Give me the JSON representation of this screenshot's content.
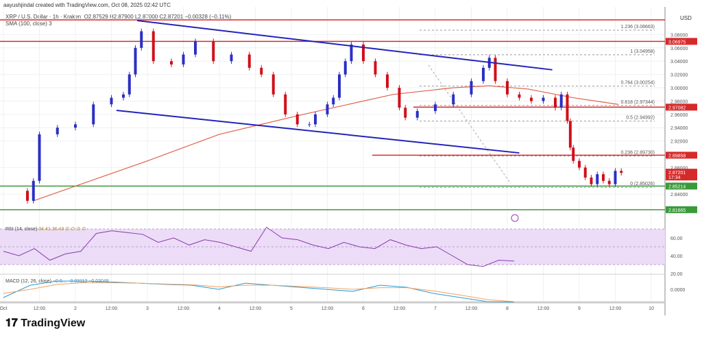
{
  "header": {
    "credit": "aayushjindal created with TradingView.com, Oct 08, 2025 02:42 UTC",
    "symbol": "XRP / U.S. Dollar · 1h · Kraken",
    "ohlc": "O2.87529  H2.87900  L2.87000  C2.87201  −0.00328 (−0.11%)",
    "sma": "SMA (100, close)  3",
    "currency": "USD"
  },
  "rsi_label": "RSI (14, close)",
  "rsi_values": "34.41  36.43  ∅ ∅ ∅ ∅",
  "macd_label": "MACD (12, 26, close)",
  "macd_values": "−0.0...  −0.03112  −0.03048",
  "brand": "TradingView",
  "colors": {
    "up": "#2b2fc4",
    "down": "#d0101a",
    "sma": "#e0604a",
    "trend": "#2222bb",
    "res": "#d62a2a",
    "sup": "#3a9a3a",
    "rsi": "#8a3aa8",
    "rsiBand": "#ecdcf8"
  },
  "chart_data": {
    "type": "candlestick",
    "title": "XRP / U.S. Dollar · 1h · Kraken",
    "ylim": [
      2.805,
      3.105
    ],
    "price_ticks": [
      3.08,
      3.06,
      3.04,
      3.02,
      3.0,
      2.98,
      2.96,
      2.94,
      2.92,
      2.88,
      2.84
    ],
    "x_ticks": [
      "Oct",
      "12:00",
      "2",
      "12:00",
      "3",
      "12:00",
      "4",
      "12:00",
      "5",
      "12:00",
      "6",
      "12:00",
      "7",
      "12:00",
      "8",
      "12:00",
      "9",
      "12:00",
      "10"
    ],
    "close_series_hours": [
      0,
      8,
      10,
      12,
      18,
      24,
      30,
      36,
      40,
      42,
      44,
      46,
      50,
      56,
      60,
      64,
      70,
      76,
      82,
      86,
      90,
      94,
      98,
      102,
      104,
      108,
      110,
      112,
      114,
      116,
      120,
      124,
      128,
      132,
      134,
      138,
      144,
      150,
      156,
      160,
      162,
      164,
      168,
      172,
      176,
      180,
      184,
      186,
      188,
      189,
      190,
      192,
      194,
      196,
      198,
      200,
      202,
      204,
      206
    ],
    "close_series": [
      2.845,
      2.83,
      2.86,
      2.93,
      2.94,
      2.945,
      2.975,
      2.985,
      2.99,
      3.02,
      3.06,
      3.085,
      3.04,
      3.035,
      3.05,
      3.07,
      3.04,
      3.05,
      3.03,
      3.02,
      2.99,
      2.96,
      2.945,
      2.945,
      2.96,
      2.975,
      2.985,
      3.02,
      3.04,
      3.065,
      3.04,
      3.02,
      3.0,
      2.97,
      2.955,
      2.965,
      2.975,
      2.99,
      3.01,
      3.03,
      3.045,
      3.01,
      2.99,
      2.985,
      2.98,
      2.985,
      2.97,
      2.99,
      2.95,
      2.91,
      2.89,
      2.88,
      2.865,
      2.855,
      2.87,
      2.86,
      2.855,
      2.875,
      2.872
    ],
    "sma_hours": [
      10,
      48,
      72,
      100,
      130,
      150,
      162,
      175,
      190,
      205
    ],
    "sma_values": [
      2.83,
      2.89,
      2.93,
      2.96,
      2.99,
      3.0,
      3.003,
      2.998,
      2.985,
      2.975
    ],
    "trendlines": [
      {
        "name": "upper channel",
        "from": [
          44.6,
          3.101
        ],
        "to": [
          183,
          3.027
        ]
      },
      {
        "name": "lower channel",
        "from": [
          37.7,
          2.966
        ],
        "to": [
          172,
          2.902
        ]
      }
    ],
    "horizontal_levels": [
      {
        "value": "3.06975",
        "type": "resistance"
      },
      {
        "value": "2.97082",
        "type": "resistance"
      },
      {
        "value": "2.89858",
        "type": "resistance"
      },
      {
        "value": "2.85214",
        "type": "support"
      },
      {
        "value": "2.81665",
        "type": "support"
      }
    ],
    "current_price": {
      "value": "2.87201",
      "countdown": "17:34"
    },
    "fib_levels": [
      {
        "label": "1.236 (3.08663)",
        "value": 3.08663
      },
      {
        "label": "1 (3.04958)",
        "value": 3.04958
      },
      {
        "label": "0.764 (3.00254)",
        "value": 3.00254
      },
      {
        "label": "0.618 (2.97344)",
        "value": 2.97344
      },
      {
        "label": "0.5 (2.94992)",
        "value": 2.94992
      },
      {
        "label": "0.236 (2.89730)",
        "value": 2.8973
      },
      {
        "label": "0 (2.85026)",
        "value": 2.85026
      }
    ],
    "rsi": {
      "ticks": [
        "60.00",
        "40.00",
        "20.00"
      ],
      "band": [
        30,
        70
      ],
      "values": [
        45,
        40,
        48,
        35,
        42,
        45,
        65,
        68,
        66,
        64,
        55,
        60,
        52,
        58,
        55,
        50,
        45,
        72,
        60,
        58,
        52,
        48,
        55,
        50,
        48,
        58,
        52,
        48,
        50,
        40,
        30,
        28,
        35,
        34
      ]
    },
    "macd": {
      "ticks": [
        "0.0000"
      ],
      "macd": [
        -0.02,
        0.01,
        0.02,
        0.02,
        0.018,
        0.015,
        0.012,
        0.01,
        0.0,
        0.015,
        0.01,
        0.005,
        0.0,
        -0.005,
        0.01,
        0.005,
        -0.01,
        -0.02,
        -0.03,
        -0.031
      ],
      "signal": [
        -0.01,
        0.0,
        0.012,
        0.016,
        0.016,
        0.015,
        0.013,
        0.011,
        0.006,
        0.01,
        0.01,
        0.007,
        0.004,
        0.0,
        0.004,
        0.004,
        -0.004,
        -0.014,
        -0.025,
        -0.03
      ]
    }
  }
}
